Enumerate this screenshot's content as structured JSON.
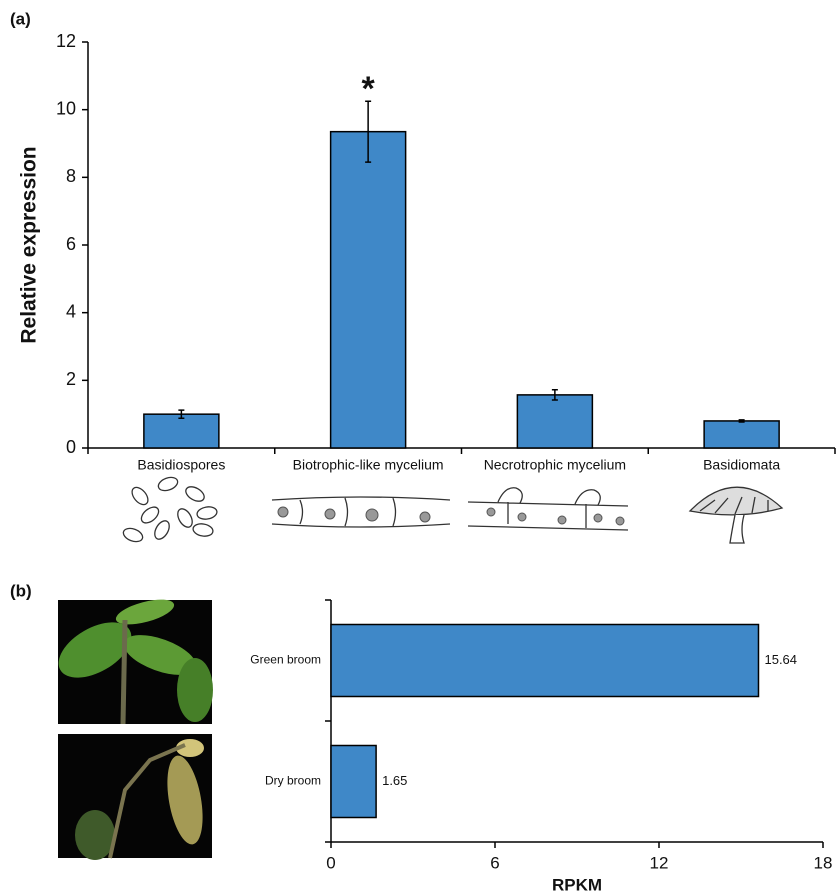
{
  "chart_data": [
    {
      "type": "bar",
      "panel_label": "(a)",
      "ylabel": "Relative expression",
      "categories": [
        "Basidiospores",
        "Biotrophic-like mycelium",
        "Necrotrophic mycelium",
        "Basidiomata"
      ],
      "values": [
        1.0,
        9.35,
        1.57,
        0.8
      ],
      "errors": [
        0.12,
        0.9,
        0.15,
        0.03
      ],
      "color": "#3f88c8",
      "ylim": [
        0,
        12
      ],
      "yticks": [
        0,
        2,
        4,
        6,
        8,
        10,
        12
      ],
      "annotations": [
        {
          "text": "*",
          "category": "Biotrophic-like mycelium"
        }
      ]
    },
    {
      "type": "barh",
      "panel_label": "(b)",
      "xlabel": "RPKM",
      "categories": [
        "Green broom",
        "Dry broom"
      ],
      "values": [
        15.64,
        1.65
      ],
      "color": "#3f88c8",
      "xlim": [
        0,
        18
      ],
      "xticks": [
        0,
        6,
        12,
        18
      ]
    }
  ]
}
